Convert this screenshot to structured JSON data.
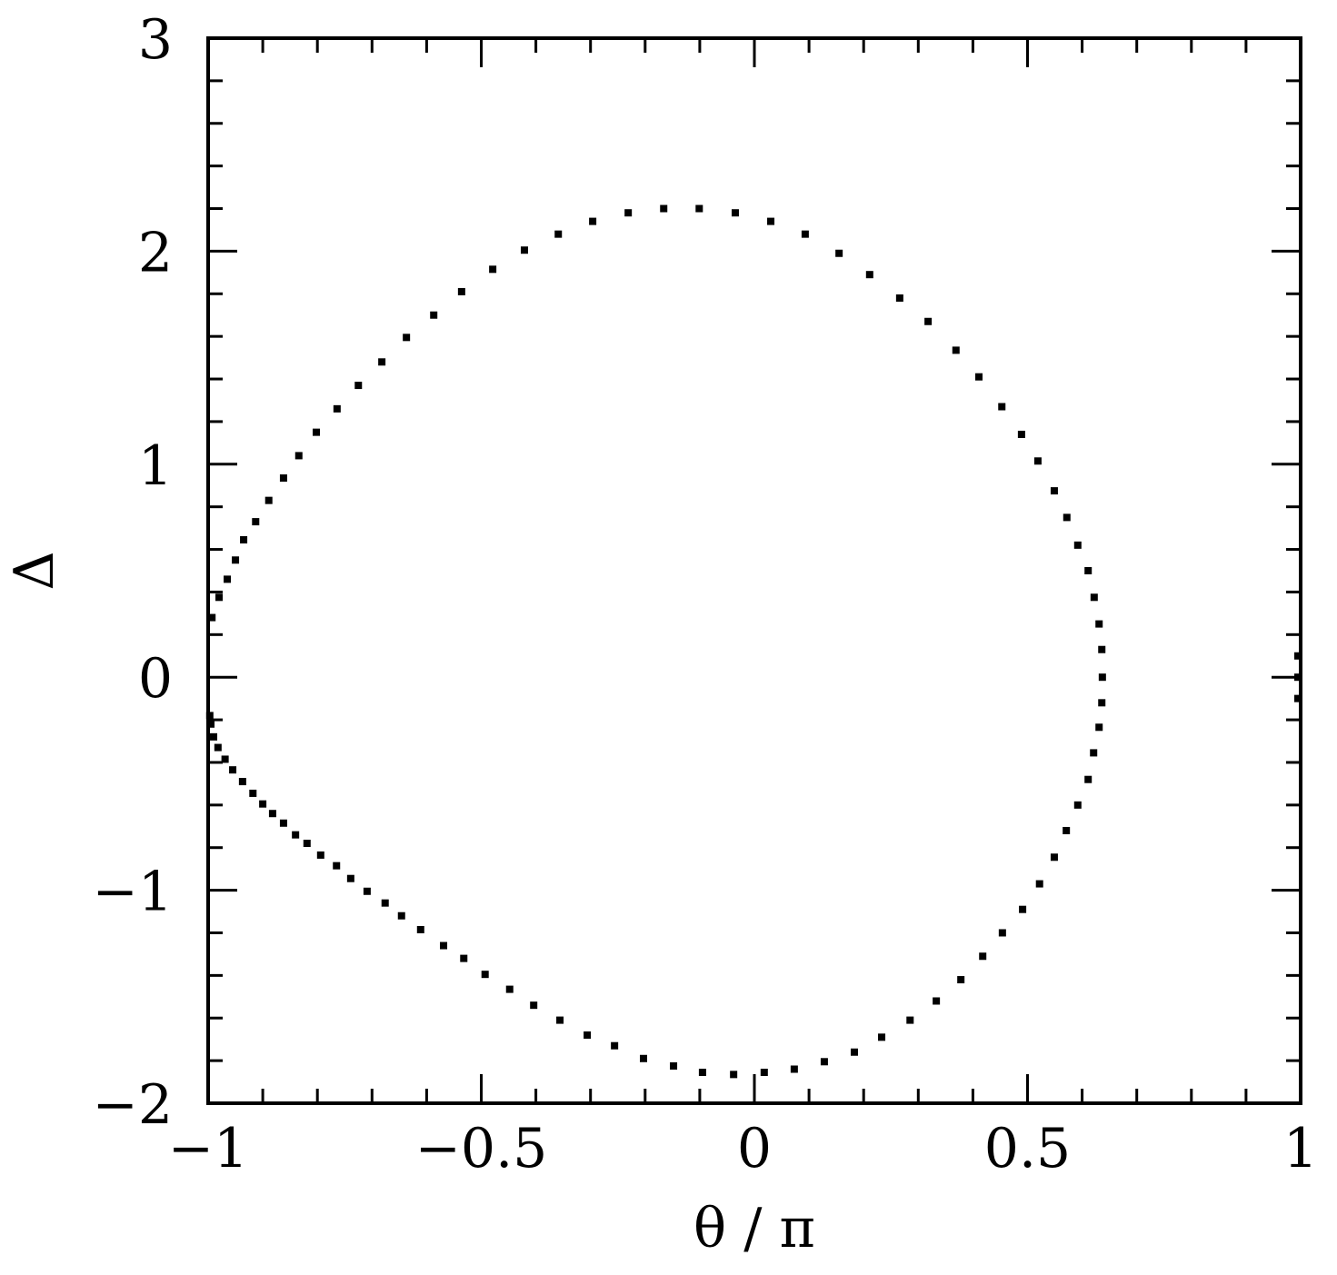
{
  "chart_data": {
    "type": "scatter",
    "x_label": "θ / π",
    "y_label": "Δ",
    "xlim": [
      -1,
      1
    ],
    "ylim": [
      -2,
      3
    ],
    "xticks": [
      {
        "value": -1,
        "label": "−1"
      },
      {
        "value": -0.5,
        "label": "−0.5"
      },
      0,
      0.5,
      1
    ],
    "yticks": [
      {
        "value": -2,
        "label": "−2"
      },
      {
        "value": -1,
        "label": "−1"
      },
      0,
      1,
      2,
      3
    ],
    "xminorticks": [
      -0.9,
      -0.8,
      -0.7,
      -0.6,
      -0.4,
      -0.3,
      -0.2,
      -0.1,
      0.1,
      0.2,
      0.3,
      0.4,
      0.6,
      0.7,
      0.8,
      0.9
    ],
    "yminorticks": [
      -1.8,
      -1.6,
      -1.4,
      -1.2,
      -0.8,
      -0.6,
      -0.4,
      -0.2,
      0.2,
      0.4,
      0.6,
      0.8,
      1.2,
      1.4,
      1.6,
      1.8,
      2.2,
      2.4,
      2.6,
      2.8
    ],
    "series": [
      {
        "color": "#000000",
        "x": [
          -0.993,
          -0.98,
          -0.965,
          -0.95,
          -0.935,
          -0.913,
          -0.889,
          -0.862,
          -0.834,
          -0.802,
          -0.764,
          -0.725,
          -0.682,
          -0.637,
          -0.587,
          -0.536,
          -0.479,
          -0.421,
          -0.359,
          -0.296,
          -0.231,
          -0.166,
          -0.101,
          -0.035,
          0.03,
          0.093,
          0.155,
          0.211,
          0.266,
          0.318,
          0.369,
          0.411,
          0.453,
          0.489,
          0.519,
          0.549,
          0.572,
          0.592,
          0.611,
          0.622,
          0.631,
          0.636,
          0.637,
          0.636,
          0.631,
          0.621,
          0.611,
          0.592,
          0.571,
          0.549,
          0.522,
          0.491,
          0.454,
          0.418,
          0.378,
          0.333,
          0.285,
          0.233,
          0.183,
          0.128,
          0.073,
          0.018,
          -0.038,
          -0.095,
          -0.148,
          -0.203,
          -0.256,
          -0.306,
          -0.356,
          -0.404,
          -0.448,
          -0.493,
          -0.532,
          -0.569,
          -0.611,
          -0.646,
          -0.676,
          -0.709,
          -0.739,
          -0.765,
          -0.794,
          -0.819,
          -0.84,
          -0.862,
          -0.882,
          -0.9,
          -0.918,
          -0.937,
          -0.955,
          -0.969,
          -0.982,
          -0.99,
          -0.995,
          -0.997,
          0.995,
          0.995,
          0.995
        ],
        "values": [
          0.28,
          0.375,
          0.46,
          0.55,
          0.645,
          0.73,
          0.83,
          0.935,
          1.04,
          1.15,
          1.26,
          1.37,
          1.48,
          1.595,
          1.7,
          1.81,
          1.915,
          2.005,
          2.08,
          2.14,
          2.18,
          2.2,
          2.2,
          2.18,
          2.14,
          2.08,
          1.99,
          1.89,
          1.78,
          1.67,
          1.535,
          1.41,
          1.27,
          1.14,
          1.015,
          0.875,
          0.75,
          0.62,
          0.5,
          0.375,
          0.25,
          0.13,
          0.0,
          -0.12,
          -0.235,
          -0.355,
          -0.48,
          -0.6,
          -0.72,
          -0.845,
          -0.97,
          -1.09,
          -1.2,
          -1.31,
          -1.42,
          -1.52,
          -1.61,
          -1.69,
          -1.76,
          -1.805,
          -1.84,
          -1.855,
          -1.865,
          -1.855,
          -1.825,
          -1.79,
          -1.73,
          -1.68,
          -1.61,
          -1.54,
          -1.465,
          -1.395,
          -1.32,
          -1.26,
          -1.185,
          -1.12,
          -1.06,
          -1.005,
          -0.945,
          -0.885,
          -0.835,
          -0.78,
          -0.74,
          -0.685,
          -0.64,
          -0.595,
          -0.545,
          -0.49,
          -0.435,
          -0.385,
          -0.33,
          -0.28,
          -0.22,
          -0.18,
          0.1,
          0.0,
          -0.1
        ]
      }
    ]
  }
}
